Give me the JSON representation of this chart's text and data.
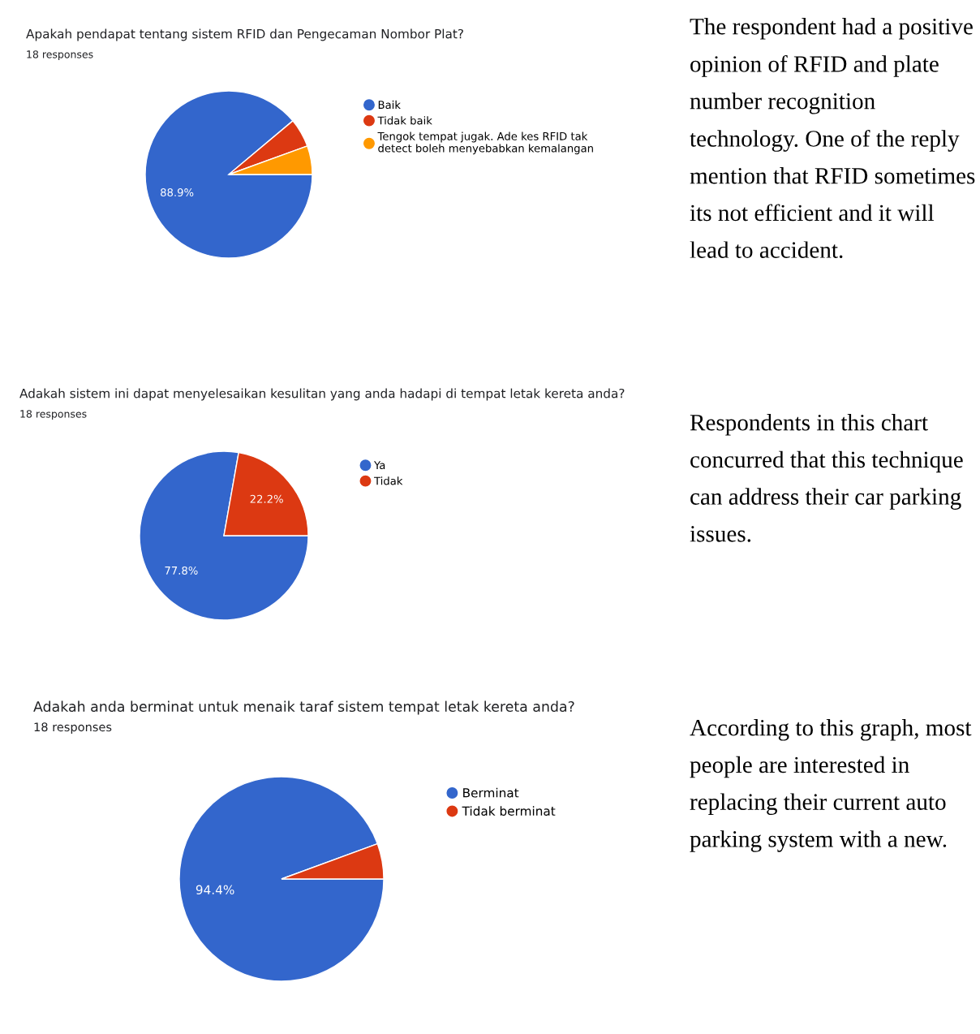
{
  "chart_data": [
    {
      "type": "pie",
      "title": "Apakah pendapat tentang sistem RFID dan Pengecaman Nombor Plat?",
      "subtitle": "18 responses",
      "categories": [
        "Baik",
        "Tidak baik",
        "Tengok tempat jugak. Ade kes RFID tak\ndetect boleh menyebabkan kemalangan"
      ],
      "values": [
        88.9,
        5.55,
        5.55
      ],
      "colors": [
        "#3366cc",
        "#dc3912",
        "#ff9900"
      ],
      "value_labels": [
        "88.9%",
        null,
        null
      ],
      "legend": "right",
      "annotations": [
        "The respondent had a positive opinion of RFID and plate number recognition technology. One of the reply mention that RFID sometimes its not efficient and it will lead to accident."
      ]
    },
    {
      "type": "pie",
      "title": "Adakah sistem ini dapat menyelesaikan kesulitan yang anda hadapi di tempat letak kereta anda?",
      "subtitle": "18 responses",
      "categories": [
        "Ya",
        "Tidak"
      ],
      "values": [
        77.8,
        22.2
      ],
      "colors": [
        "#3366cc",
        "#dc3912"
      ],
      "value_labels": [
        "77.8%",
        "22.2%"
      ],
      "legend": "right",
      "annotations": [
        "Respondents in this chart concurred that this technique can address their car parking issues."
      ]
    },
    {
      "type": "pie",
      "title": "Adakah anda berminat untuk menaik taraf sistem tempat letak kereta anda?",
      "subtitle": "18 responses",
      "categories": [
        "Berminat",
        "Tidak berminat"
      ],
      "values": [
        94.4,
        5.6
      ],
      "colors": [
        "#3366cc",
        "#dc3912"
      ],
      "value_labels": [
        "94.4%",
        null
      ],
      "legend": "right",
      "annotations": [
        "According to this graph, most people are interested in replacing their current auto parking system with a new."
      ]
    }
  ]
}
